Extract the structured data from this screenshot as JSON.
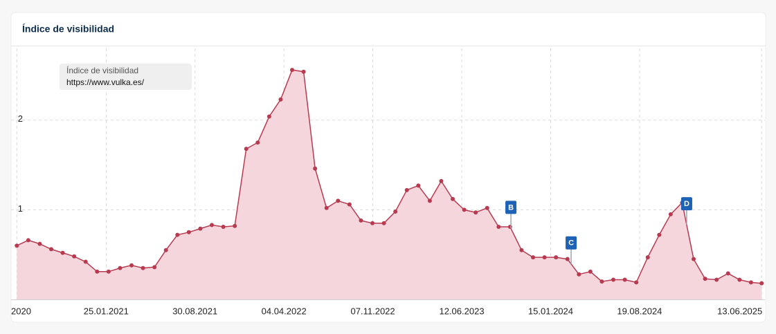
{
  "chart_data": {
    "type": "area-line",
    "title": "Índice de visibilidad",
    "legend": {
      "title": "Índice de visibilidad",
      "subtitle": "https://www.vulka.es/",
      "position": "upper left"
    },
    "color": "#b73a50",
    "fill_color": "#f5d6dc",
    "xlim": [
      "07.06.2020",
      "21.06.2025"
    ],
    "xticks": [
      {
        "value": "21.06.2020",
        "label": "2020"
      },
      "25.01.2021",
      "30.08.2021",
      "04.04.2022",
      "07.11.2022",
      "12.06.2023",
      "15.01.2024",
      "19.08.2024",
      "13.06.2025"
    ],
    "ylim": [
      0,
      2.8
    ],
    "yticks": [
      1,
      2
    ],
    "grid": true,
    "x": [
      "21.06.2020",
      "19.07.2020",
      "16.08.2020",
      "13.09.2020",
      "11.10.2020",
      "08.11.2020",
      "06.12.2020",
      "03.01.2021",
      "31.01.2021",
      "28.02.2021",
      "28.03.2021",
      "25.04.2021",
      "23.05.2021",
      "20.06.2021",
      "18.07.2021",
      "15.08.2021",
      "12.09.2021",
      "10.10.2021",
      "07.11.2021",
      "05.12.2021",
      "02.01.2022",
      "30.01.2022",
      "27.02.2022",
      "27.03.2022",
      "24.04.2022",
      "22.05.2022",
      "19.06.2022",
      "17.07.2022",
      "14.08.2022",
      "11.09.2022",
      "09.10.2022",
      "06.11.2022",
      "04.12.2022",
      "01.01.2023",
      "29.01.2023",
      "26.02.2023",
      "26.03.2023",
      "23.04.2023",
      "21.05.2023",
      "18.06.2023",
      "16.07.2023",
      "13.08.2023",
      "10.09.2023",
      "08.10.2023",
      "05.11.2023",
      "03.12.2023",
      "31.12.2023",
      "28.01.2024",
      "25.02.2024",
      "24.03.2024",
      "21.04.2024",
      "19.05.2024",
      "16.06.2024",
      "14.07.2024",
      "11.08.2024",
      "08.09.2024",
      "06.10.2024",
      "03.11.2024",
      "01.12.2024",
      "29.12.2024",
      "26.01.2025",
      "23.02.2025",
      "23.03.2025",
      "20.04.2025",
      "18.05.2025",
      "13.06.2025"
    ],
    "values": [
      0.6,
      0.66,
      0.62,
      0.56,
      0.52,
      0.48,
      0.42,
      0.31,
      0.31,
      0.35,
      0.38,
      0.35,
      0.36,
      0.55,
      0.72,
      0.75,
      0.79,
      0.83,
      0.81,
      0.82,
      1.68,
      1.75,
      2.04,
      2.23,
      2.56,
      2.54,
      1.46,
      1.02,
      1.1,
      1.06,
      0.88,
      0.85,
      0.85,
      0.98,
      1.22,
      1.27,
      1.1,
      1.32,
      1.12,
      1.0,
      0.97,
      1.02,
      0.81,
      0.81,
      0.55,
      0.47,
      0.47,
      0.47,
      0.45,
      0.28,
      0.31,
      0.2,
      0.22,
      0.22,
      0.19,
      0.47,
      0.72,
      0.95,
      1.08,
      0.45,
      0.23,
      0.22,
      0.29,
      0.22,
      0.19,
      0.18
    ],
    "annotations": [
      {
        "label": "B",
        "x": "10.10.2023"
      },
      {
        "label": "C",
        "x": "05.03.2024"
      },
      {
        "label": "D",
        "x": "12.12.2024"
      }
    ]
  }
}
